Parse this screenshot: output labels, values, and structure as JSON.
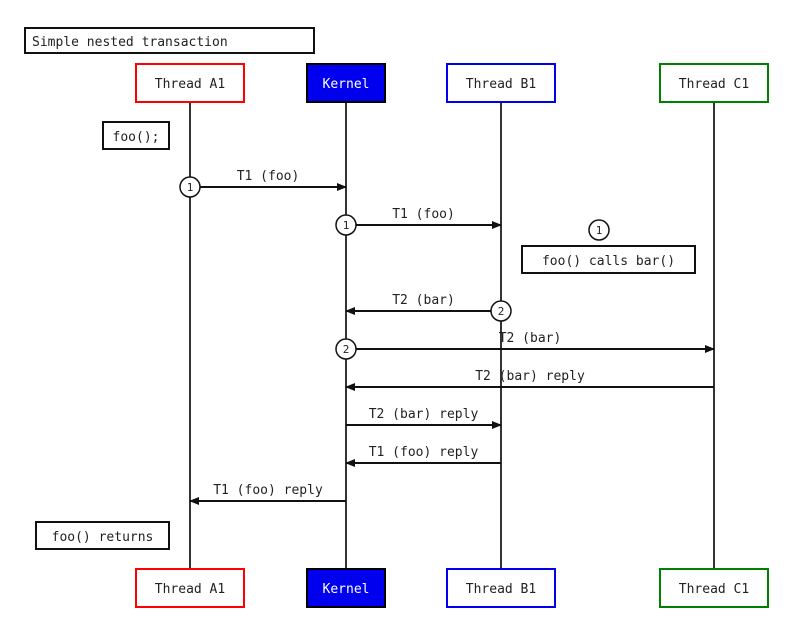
{
  "title": "Simple nested transaction",
  "participants": [
    {
      "id": "A1",
      "label": "Thread A1",
      "border": "#ff0000",
      "fill": "#ffffff",
      "text": "#222222"
    },
    {
      "id": "K",
      "label": "Kernel",
      "border": "#000000",
      "fill": "#0000ee",
      "text": "#ffffff"
    },
    {
      "id": "B1",
      "label": "Thread B1",
      "border": "#0000ee",
      "fill": "#ffffff",
      "text": "#222222"
    },
    {
      "id": "C1",
      "label": "Thread C1",
      "border": "#008000",
      "fill": "#ffffff",
      "text": "#222222"
    }
  ],
  "messages": [
    {
      "from": "A1",
      "to": "K",
      "label": "T1 (foo)",
      "marker": "1"
    },
    {
      "from": "K",
      "to": "B1",
      "label": "T1 (foo)",
      "marker": "1"
    },
    {
      "from": "B1",
      "to": "K",
      "label": "T2 (bar)",
      "marker": "2"
    },
    {
      "from": "K",
      "to": "C1",
      "label": "T2 (bar)",
      "marker": "2"
    },
    {
      "from": "C1",
      "to": "K",
      "label": "T2 (bar) reply",
      "marker": ""
    },
    {
      "from": "K",
      "to": "B1",
      "label": "T2 (bar) reply",
      "marker": ""
    },
    {
      "from": "B1",
      "to": "K",
      "label": "T1 (foo) reply",
      "marker": ""
    },
    {
      "from": "K",
      "to": "A1",
      "label": "T1 (foo) reply",
      "marker": ""
    }
  ],
  "notes": [
    {
      "label": "foo();",
      "marker": ""
    },
    {
      "label": "foo() calls bar()",
      "marker": "1"
    },
    {
      "label": "foo() returns",
      "marker": ""
    }
  ]
}
